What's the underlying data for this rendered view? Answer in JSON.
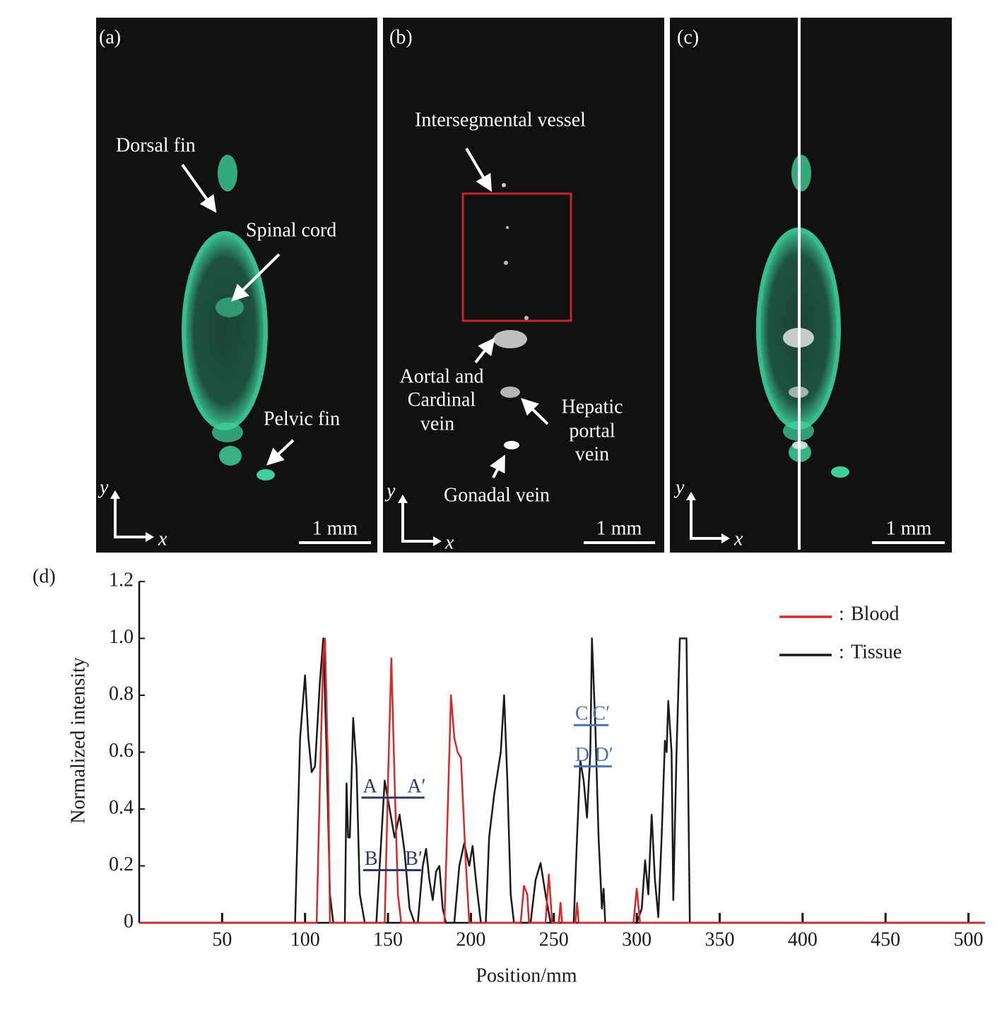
{
  "panels": [
    {
      "label": "(a)",
      "annotations": [
        "Dorsal fin",
        "Spinal cord",
        "Pelvic fin"
      ],
      "scale_bar": "1 mm",
      "axis_x": "x",
      "axis_y": "y"
    },
    {
      "label": "(b)",
      "annotations": [
        "Intersegmental vessel",
        [
          "Aortal and",
          "Cardinal",
          "vein"
        ],
        [
          "Hepatic",
          "portal",
          "vein"
        ],
        "Gonadal vein"
      ],
      "scale_bar": "1 mm",
      "axis_x": "x",
      "axis_y": "y"
    },
    {
      "label": "(c)",
      "scale_bar": "1 mm",
      "axis_x": "x",
      "axis_y": "y"
    }
  ],
  "chart_data": {
    "type": "line",
    "panel_label": "(d)",
    "x_label": "Position/mm",
    "y_label": "Normalized intensity",
    "xlim": [
      0,
      510
    ],
    "ylim": [
      0,
      1.2
    ],
    "xticks": [
      50,
      100,
      150,
      200,
      250,
      300,
      350,
      400,
      450,
      500
    ],
    "yticks": [
      0,
      0.2,
      0.4,
      0.6,
      0.8,
      {
        "value": 1,
        "label": "1.0"
      },
      1.2
    ],
    "legend_separator": ":",
    "legend": "upper right",
    "series": [
      {
        "name": "Blood",
        "color": "#d42a2a",
        "x": [
          0,
          107,
          109,
          111,
          112,
          114,
          115,
          148,
          150,
          152,
          154,
          156,
          158,
          184,
          186,
          188,
          190,
          192,
          194,
          195,
          197,
          199,
          230,
          232,
          234,
          235,
          245,
          247,
          249,
          253,
          254,
          255,
          263,
          264,
          265,
          298,
          300,
          302,
          510
        ],
        "values": [
          0,
          0,
          0.5,
          0.95,
          1.0,
          0.5,
          0,
          0,
          0.5,
          0.93,
          0.5,
          0.1,
          0,
          0,
          0.4,
          0.8,
          0.65,
          0.6,
          0.58,
          0.45,
          0.2,
          0,
          0,
          0.13,
          0.1,
          0,
          0,
          0.17,
          0,
          0,
          0.07,
          0,
          0,
          0.07,
          0,
          0,
          0.12,
          0,
          0
        ]
      },
      {
        "name": "Tissue",
        "color": "#1a1a1a",
        "x": [
          0,
          94,
          97,
          100,
          102,
          104,
          106,
          109,
          111,
          113,
          115,
          117,
          124,
          125,
          126,
          127,
          129,
          131,
          133,
          136,
          143,
          146,
          148,
          151,
          154,
          157,
          160,
          163,
          166,
          168,
          171,
          173,
          175,
          177,
          179,
          181,
          183,
          185,
          190,
          193,
          196,
          199,
          201,
          203,
          206,
          209,
          211,
          214,
          218,
          220,
          222,
          224,
          226,
          236,
          239,
          242,
          245,
          248,
          262,
          264,
          266,
          268,
          270,
          272,
          273,
          275,
          277,
          279,
          280,
          281,
          300,
          303,
          305,
          307,
          309,
          311,
          313,
          315,
          317,
          318,
          319,
          321,
          322,
          324,
          326,
          328,
          330,
          332,
          510
        ],
        "values": [
          0,
          0,
          0.65,
          0.87,
          0.65,
          0.53,
          0.55,
          0.85,
          1.0,
          0.6,
          0.1,
          0,
          0,
          0.49,
          0.3,
          0.3,
          0.72,
          0.55,
          0.1,
          0,
          0,
          0.3,
          0.5,
          0.4,
          0.3,
          0.38,
          0.25,
          0.05,
          0,
          0,
          0.2,
          0.26,
          0.15,
          0.08,
          0.18,
          0.2,
          0.05,
          0,
          0,
          0.2,
          0.28,
          0.2,
          0.27,
          0.15,
          0,
          0,
          0.3,
          0.45,
          0.6,
          0.8,
          0.5,
          0.1,
          0,
          0,
          0.15,
          0.21,
          0.1,
          0,
          0,
          0.3,
          0.57,
          0.5,
          0.37,
          0.6,
          1.0,
          0.7,
          0.3,
          0.05,
          0.12,
          0,
          0,
          0.05,
          0.22,
          0.1,
          0.38,
          0.15,
          0.02,
          0.3,
          0.64,
          0.6,
          0.78,
          0.6,
          0.08,
          0.6,
          1.0,
          1.0,
          1.0,
          0,
          0
        ]
      }
    ],
    "reference_lines": [
      {
        "start_label": "A",
        "end_label": "A′",
        "y": 0.44,
        "x": [
          134,
          172
        ],
        "color": "#2b3a6b"
      },
      {
        "start_label": "B",
        "end_label": "B′",
        "y": 0.185,
        "x": [
          135,
          170
        ],
        "color": "#2b3a6b"
      },
      {
        "start_label": "C",
        "end_label": "C′",
        "y": 0.695,
        "x": [
          262,
          283
        ],
        "color": "#4a74b4"
      },
      {
        "start_label": "D",
        "end_label": "D′",
        "y": 0.55,
        "x": [
          262,
          285
        ],
        "color": "#4a74b4"
      }
    ]
  }
}
